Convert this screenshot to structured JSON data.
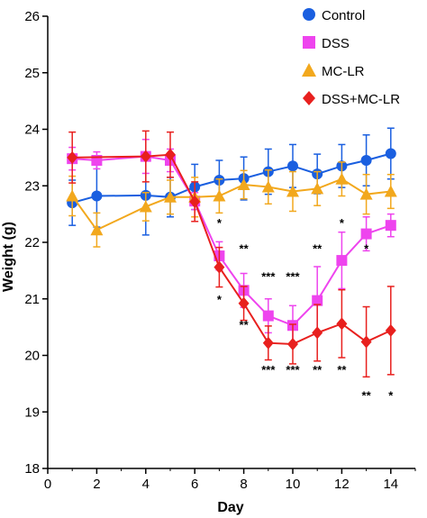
{
  "chart_data": {
    "type": "line",
    "title": "",
    "xlabel": "Day",
    "ylabel": "Weight (g)",
    "xlim": [
      0,
      15
    ],
    "ylim": [
      18,
      26
    ],
    "xticks": [
      0,
      2,
      4,
      6,
      8,
      10,
      12,
      14
    ],
    "yticks": [
      18,
      19,
      20,
      21,
      22,
      23,
      24,
      25,
      26
    ],
    "legend_position": "top-right",
    "series": [
      {
        "name": "Control",
        "color": "#1a5fe0",
        "marker": "circle",
        "x": [
          1,
          2,
          4,
          5,
          6,
          7,
          8,
          9,
          10,
          11,
          12,
          13,
          14
        ],
        "y": [
          22.7,
          22.82,
          22.83,
          22.8,
          22.98,
          23.1,
          23.13,
          23.25,
          23.35,
          23.21,
          23.35,
          23.45,
          23.57
        ],
        "err": [
          0.4,
          0.55,
          0.7,
          0.35,
          0.4,
          0.35,
          0.38,
          0.4,
          0.38,
          0.35,
          0.38,
          0.45,
          0.45
        ]
      },
      {
        "name": "DSS",
        "color": "#ee44ee",
        "marker": "square",
        "x": [
          1,
          2,
          4,
          5,
          6,
          7,
          8,
          9,
          10,
          11,
          12,
          13,
          14
        ],
        "y": [
          23.48,
          23.45,
          23.52,
          23.45,
          22.73,
          21.76,
          21.15,
          20.7,
          20.53,
          20.97,
          21.68,
          22.15,
          22.3
        ],
        "err": [
          0.2,
          0.15,
          0.3,
          0.2,
          0.15,
          0.25,
          0.3,
          0.3,
          0.35,
          0.6,
          0.5,
          0.3,
          0.2
        ]
      },
      {
        "name": "MC-LR",
        "color": "#f2a81d",
        "marker": "triangle",
        "x": [
          1,
          2,
          4,
          5,
          6,
          7,
          8,
          9,
          10,
          11,
          12,
          13,
          14
        ],
        "y": [
          22.82,
          22.22,
          22.63,
          22.8,
          22.8,
          22.82,
          23.02,
          22.98,
          22.9,
          22.95,
          23.12,
          22.85,
          22.9
        ],
        "err": [
          0.35,
          0.3,
          0.25,
          0.3,
          0.35,
          0.3,
          0.25,
          0.3,
          0.35,
          0.3,
          0.3,
          0.35,
          0.3
        ]
      },
      {
        "name": "DSS+MC-LR",
        "color": "#e8201e",
        "marker": "diamond",
        "x": [
          1,
          4,
          5,
          6,
          7,
          8,
          9,
          10,
          11,
          12,
          13,
          14
        ],
        "y": [
          23.5,
          23.52,
          23.55,
          22.72,
          21.56,
          20.92,
          20.22,
          20.2,
          20.4,
          20.56,
          20.24,
          20.44
        ],
        "err": [
          0.45,
          0.45,
          0.4,
          0.35,
          0.35,
          0.3,
          0.3,
          0.35,
          0.5,
          0.6,
          0.62,
          0.78
        ]
      }
    ],
    "annotations": [
      {
        "x": 7,
        "y": 22.35,
        "text": "*"
      },
      {
        "x": 8,
        "y": 21.9,
        "text": "**"
      },
      {
        "x": 9,
        "y": 21.4,
        "text": "***"
      },
      {
        "x": 10,
        "y": 21.4,
        "text": "***"
      },
      {
        "x": 11,
        "y": 21.9,
        "text": "**"
      },
      {
        "x": 12,
        "y": 22.35,
        "text": "*"
      },
      {
        "x": 13,
        "y": 21.9,
        "text": "*"
      },
      {
        "x": 7,
        "y": 21.0,
        "text": "*"
      },
      {
        "x": 8,
        "y": 20.55,
        "text": "**"
      },
      {
        "x": 9,
        "y": 19.75,
        "text": "***"
      },
      {
        "x": 10,
        "y": 19.75,
        "text": "***"
      },
      {
        "x": 11,
        "y": 19.75,
        "text": "**"
      },
      {
        "x": 12,
        "y": 19.75,
        "text": "**"
      },
      {
        "x": 13,
        "y": 19.3,
        "text": "**"
      },
      {
        "x": 14,
        "y": 19.3,
        "text": "*"
      }
    ]
  }
}
